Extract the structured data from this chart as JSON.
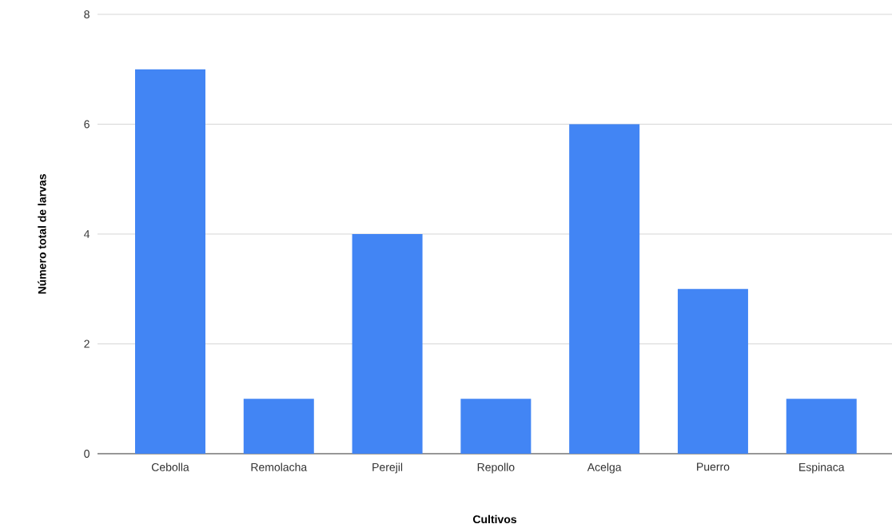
{
  "chart_data": {
    "type": "bar",
    "xlabel": "Cultivos",
    "ylabel": "Número total de larvas",
    "categories": [
      "Cebolla",
      "Remolacha",
      "Perejil",
      "Repollo",
      "Acelga",
      "Puerro",
      "Espinaca"
    ],
    "values": [
      7,
      1,
      4,
      1,
      6,
      3,
      1
    ],
    "color": "#4285f4",
    "ylim": [
      0,
      8
    ],
    "yticks": [
      0,
      2,
      4,
      6,
      8
    ],
    "grid": "y"
  }
}
